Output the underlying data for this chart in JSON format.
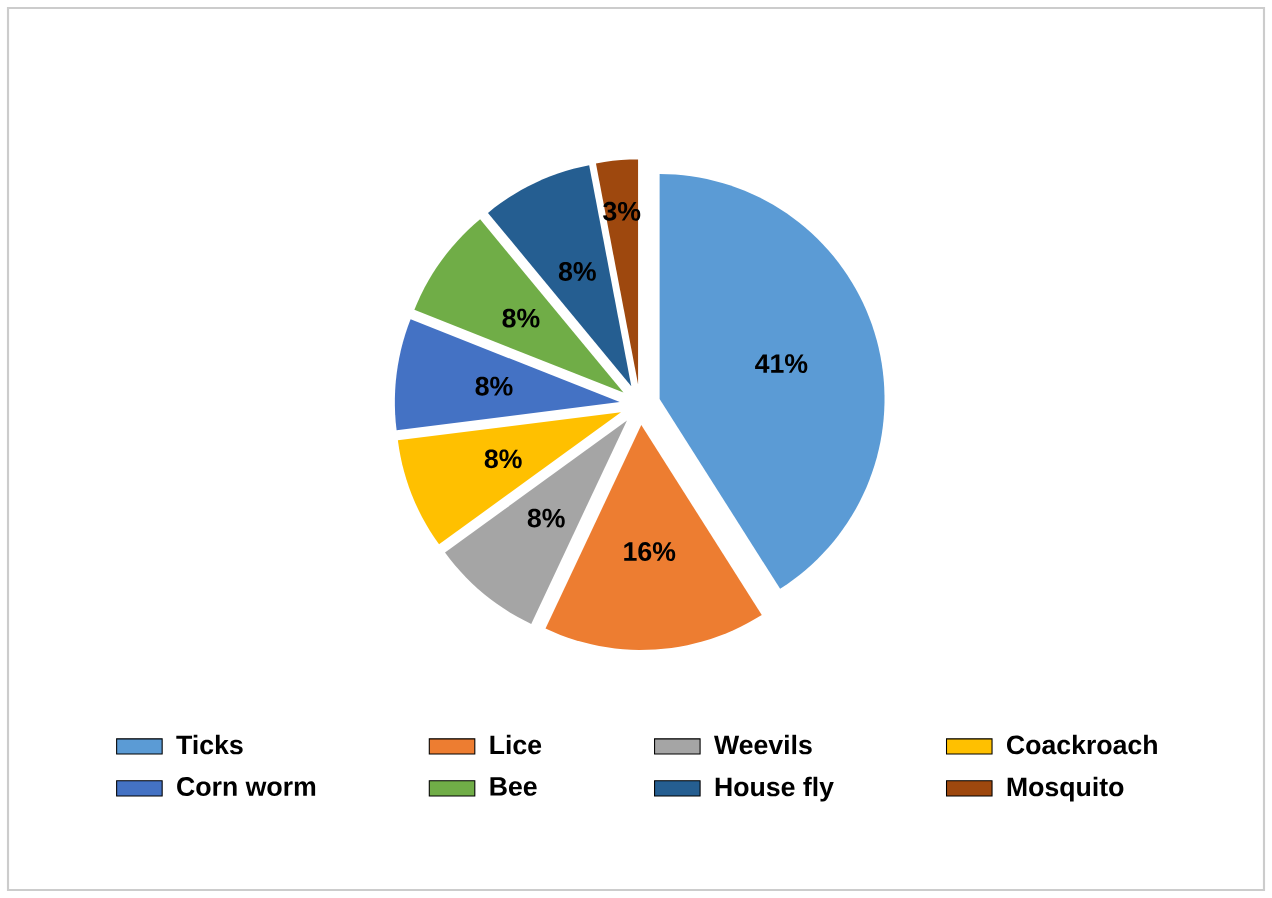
{
  "chart_data": {
    "type": "pie",
    "categories": [
      "Ticks",
      "Lice",
      "Weevils",
      "Coackroach",
      "Corn worm",
      "Bee",
      "House fly",
      "Mosquito"
    ],
    "values": [
      41,
      16,
      8,
      8,
      8,
      8,
      8,
      3
    ],
    "colors": [
      "#5b9bd5",
      "#ed7d31",
      "#a5a5a5",
      "#ffc000",
      "#4472c4",
      "#70ad47",
      "#255e91",
      "#9e480e"
    ],
    "value_labels": [
      "41%",
      "16%",
      "8%",
      "8%",
      "8%",
      "8%",
      "8%",
      "3%"
    ],
    "legend": "bottom"
  }
}
